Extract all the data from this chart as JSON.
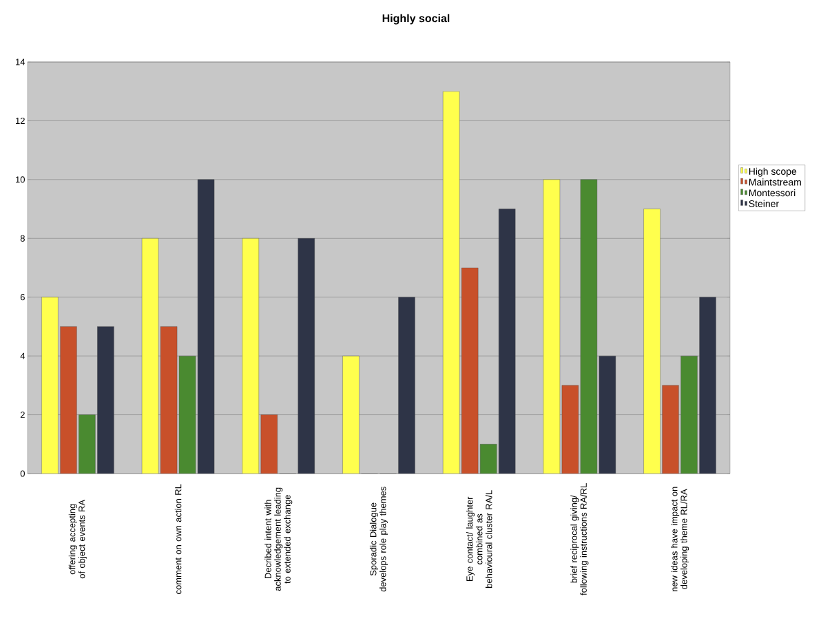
{
  "chart_data": {
    "type": "bar",
    "title": "Highly social",
    "categories": [
      "offering accepting of object events RA",
      "comment on own action RL",
      "Decribed intent with acknowledgement leading to extended exchange",
      "Sporadic Dialogue develops role play themes",
      "Eye contact/ laughter combined as behavioural cluster RA/L",
      "brief reciprocal giving/ following instructions RA/RL",
      "new ideas have impact on developing theme RL/RA"
    ],
    "series": [
      {
        "name": "High scope",
        "color": "#ffff4d",
        "values": [
          6,
          8,
          8,
          4,
          13,
          10,
          9
        ]
      },
      {
        "name": "Maintstream",
        "color": "#c8502a",
        "values": [
          5,
          5,
          2,
          0,
          7,
          3,
          3
        ]
      },
      {
        "name": "Montessori",
        "color": "#4a8a30",
        "values": [
          2,
          4,
          0,
          0,
          1,
          10,
          4
        ]
      },
      {
        "name": "Steiner",
        "color": "#2e3447",
        "values": [
          5,
          10,
          8,
          6,
          9,
          4,
          6
        ]
      }
    ],
    "ylim": [
      0,
      14
    ],
    "yticks": [
      0,
      2,
      4,
      6,
      8,
      10,
      12,
      14
    ],
    "grid": "y",
    "legend": "right"
  }
}
